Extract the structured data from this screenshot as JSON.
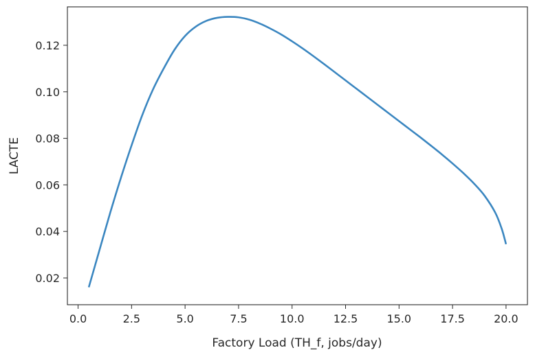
{
  "chart_data": {
    "type": "line",
    "title": "",
    "xlabel": "Factory Load (TH_f, jobs/day)",
    "ylabel": "LACTE",
    "xlim": [
      -0.5,
      21.0
    ],
    "ylim": [
      0.0085,
      0.1365
    ],
    "x_ticks": [
      0.0,
      2.5,
      5.0,
      7.5,
      10.0,
      12.5,
      15.0,
      17.5,
      20.0
    ],
    "x_tick_labels": [
      "0.0",
      "2.5",
      "5.0",
      "7.5",
      "10.0",
      "12.5",
      "15.0",
      "17.5",
      "20.0"
    ],
    "y_ticks": [
      0.02,
      0.04,
      0.06,
      0.08,
      0.1,
      0.12
    ],
    "y_tick_labels": [
      "0.02",
      "0.04",
      "0.06",
      "0.08",
      "0.10",
      "0.12"
    ],
    "grid": false,
    "color": "#3a86c0",
    "series": [
      {
        "x": [
          0.5,
          1.0,
          1.5,
          2.0,
          2.5,
          3.0,
          3.5,
          4.0,
          4.5,
          5.0,
          5.5,
          6.0,
          6.5,
          7.0,
          7.5,
          8.0,
          8.5,
          9.0,
          9.5,
          10.0,
          10.5,
          11.0,
          11.5,
          12.0,
          12.5,
          13.0,
          13.5,
          14.0,
          14.5,
          15.0,
          15.5,
          16.0,
          16.5,
          17.0,
          17.5,
          18.0,
          18.5,
          19.0,
          19.5,
          19.8,
          20.0
        ],
        "y": [
          0.016,
          0.032,
          0.048,
          0.063,
          0.077,
          0.09,
          0.101,
          0.11,
          0.118,
          0.124,
          0.128,
          0.1305,
          0.1318,
          0.1322,
          0.132,
          0.131,
          0.1293,
          0.1271,
          0.1246,
          0.1217,
          0.1186,
          0.1153,
          0.1119,
          0.1084,
          0.1049,
          0.1014,
          0.0979,
          0.0944,
          0.0909,
          0.0874,
          0.0839,
          0.0804,
          0.0768,
          0.0731,
          0.0692,
          0.0651,
          0.0606,
          0.0553,
          0.048,
          0.0411,
          0.0345
        ]
      }
    ]
  }
}
